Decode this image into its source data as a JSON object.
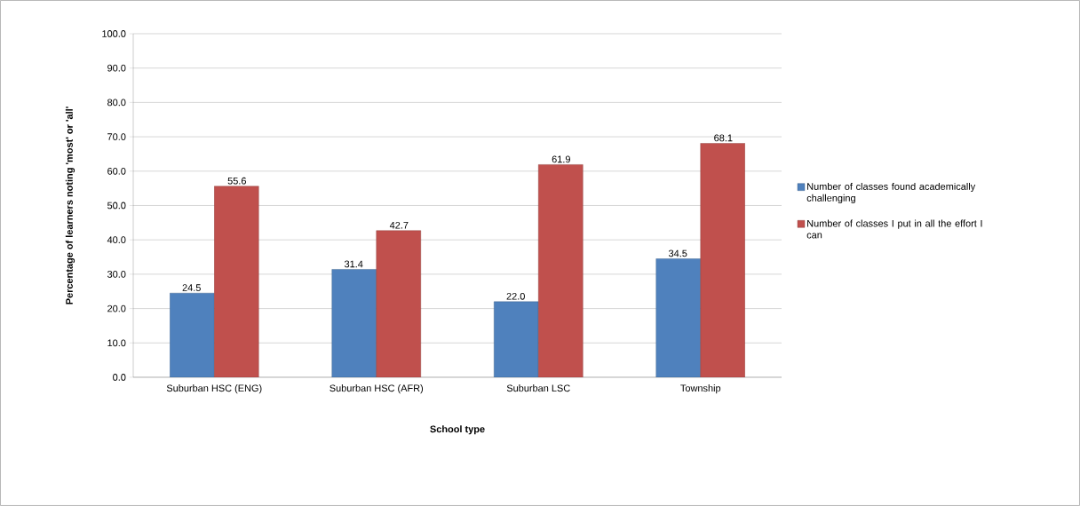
{
  "chart_data": {
    "type": "bar",
    "xlabel": "School type",
    "ylabel": "Percentage of learners noting 'most' or 'all'",
    "categories": [
      "Suburban HSC (ENG)",
      "Suburban HSC (AFR)",
      "Suburban LSC",
      "Township"
    ],
    "series": [
      {
        "name": "Number of classes found academically challenging",
        "color": "#4f81bd",
        "values": [
          24.5,
          31.4,
          22.0,
          34.5
        ],
        "value_labels": [
          "24.5",
          "31.4",
          "22.0",
          "34.5"
        ]
      },
      {
        "name": "Number of classes I put in all the effort I can",
        "color": "#c0504d",
        "values": [
          55.6,
          42.7,
          61.9,
          68.1
        ],
        "value_labels": [
          "55.6",
          "42.7",
          "61.9",
          "68.1"
        ]
      }
    ],
    "ylim": [
      0,
      100
    ],
    "yticks": [
      {
        "value": 0,
        "label": "0.0"
      },
      {
        "value": 10,
        "label": "10.0"
      },
      {
        "value": 20,
        "label": "20.0"
      },
      {
        "value": 30,
        "label": "30.0"
      },
      {
        "value": 40,
        "label": "40.0"
      },
      {
        "value": 50,
        "label": "50.0"
      },
      {
        "value": 60,
        "label": "60.0"
      },
      {
        "value": 70,
        "label": "70.0"
      },
      {
        "value": 80,
        "label": "80.0"
      },
      {
        "value": 90,
        "label": "90.0"
      },
      {
        "value": 100,
        "label": "100.0"
      }
    ],
    "grid": "y",
    "legend": "right"
  }
}
